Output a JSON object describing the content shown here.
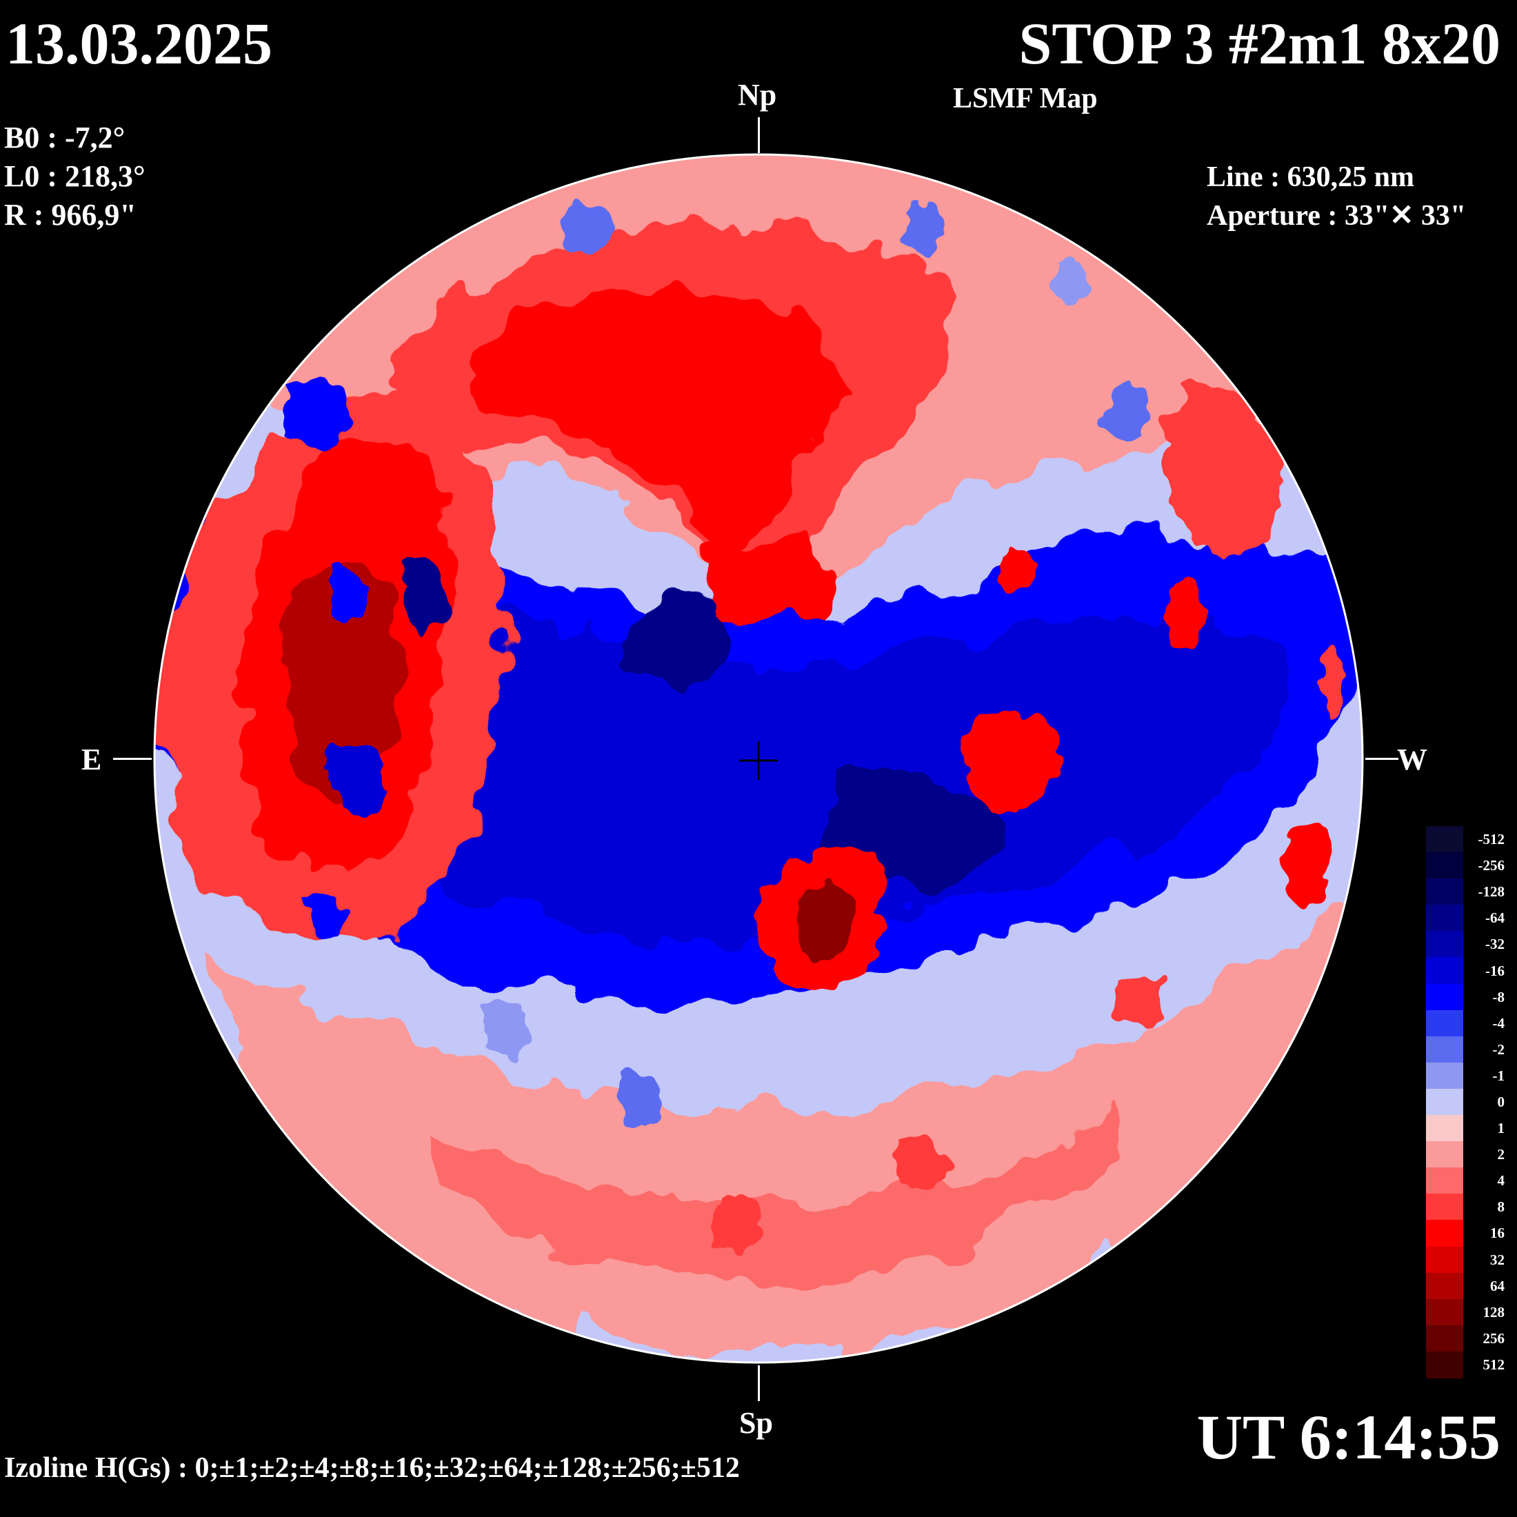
{
  "header": {
    "date": "13.03.2025",
    "title": "STOP 3 #2m1 8x20",
    "subtitle": "LSMF  Map"
  },
  "params": {
    "b0": "B0 : -7,2°",
    "l0": "L0 : 218,3°",
    "r": "R  : 966,9\""
  },
  "instrument": {
    "line": "Line :  630,25 nm",
    "aperture": "Aperture : 33\"✕ 33\""
  },
  "directions": {
    "north": "Np",
    "south": "Sp",
    "east": "E",
    "west": "W"
  },
  "time": "UT 6:14:55",
  "izoline": "Izoline H(Gs) : 0;±1;±2;±4;±8;±16;±32;±64;±128;±256;±512",
  "colorscale": {
    "levels": [
      "-512",
      "-256",
      "-128",
      "-64",
      "-32",
      "-16",
      "-8",
      "-4",
      "-2",
      "-1",
      "0",
      "1",
      "2",
      "4",
      "8",
      "16",
      "32",
      "64",
      "128",
      "256",
      "512"
    ],
    "colors": [
      "#0a0a33",
      "#00003f",
      "#000064",
      "#000089",
      "#0000ad",
      "#0000d6",
      "#0000ff",
      "#2a3cf2",
      "#5c6cf0",
      "#8e98f2",
      "#c4c8f8",
      "#f9c8c8",
      "#fb9a9a",
      "#fc6a6a",
      "#ff3a3a",
      "#ff0000",
      "#d90000",
      "#b20000",
      "#8c0000",
      "#660000",
      "#400000"
    ]
  },
  "chart_data": {
    "type": "heatmap",
    "title": "STOP 3 #2m1 8x20",
    "subtitle": "LSMF  Map",
    "unit": "H(Gs)",
    "izoline_levels": [
      0,
      1,
      -1,
      2,
      -2,
      4,
      -4,
      8,
      -8,
      16,
      -16,
      32,
      -32,
      64,
      -64,
      128,
      -128,
      256,
      -256,
      512,
      -512
    ],
    "legend_position": "right-bottom",
    "regions": [
      {
        "polarity": "positive",
        "area": "north polar band"
      },
      {
        "polarity": "negative",
        "area": "central equatorial band"
      },
      {
        "polarity": "positive",
        "area": "eastern limb"
      },
      {
        "polarity": "positive",
        "area": "southern band"
      },
      {
        "polarity": "positive",
        "area": "central spot near disk centre"
      }
    ]
  }
}
